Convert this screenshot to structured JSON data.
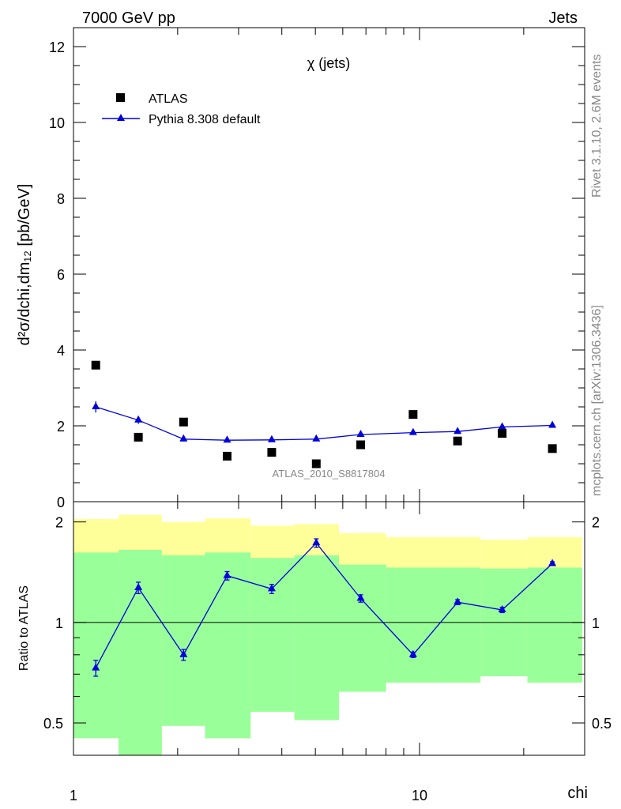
{
  "header": {
    "left": "7000 GeV pp",
    "right": "Jets"
  },
  "side_labels": {
    "rivet": "Rivet 3.1.10,  2.6M events",
    "site": "mcplots.cern.ch [arXiv:1306.3436]"
  },
  "chart_data": [
    {
      "type": "scatter",
      "title": "χ (jets)",
      "ylabel": "d²σ/dchi,dm₁₂ [pb/GeV]",
      "watermark": "ATLAS_2010_S8817804",
      "x_scale": "log",
      "xlim": [
        1,
        30
      ],
      "ylim": [
        0,
        12.5
      ],
      "y_ticks": [
        "0",
        "2",
        "4",
        "6",
        "8",
        "10",
        "12"
      ],
      "legend_position": "top-left",
      "series": [
        {
          "name": "ATLAS",
          "style": "square-markers",
          "color": "#000000",
          "x": [
            1.16,
            1.54,
            2.08,
            2.78,
            3.74,
            5.03,
            6.76,
            9.58,
            12.88,
            17.33,
            24.2
          ],
          "y": [
            3.6,
            1.7,
            2.1,
            1.2,
            1.3,
            1.0,
            1.5,
            2.3,
            1.6,
            1.8,
            1.4
          ]
        },
        {
          "name": "Pythia 8.308 default",
          "style": "line-triangle",
          "color": "#0000dd",
          "x": [
            1.16,
            1.54,
            2.08,
            2.78,
            3.74,
            5.03,
            6.76,
            9.58,
            12.88,
            17.33,
            24.2
          ],
          "y": [
            2.5,
            2.15,
            1.65,
            1.62,
            1.63,
            1.65,
            1.77,
            1.82,
            1.85,
            1.97,
            2.01
          ],
          "yerr": [
            0.15,
            0.1,
            0.06,
            0.04,
            0.04,
            0.04,
            0.04,
            0.04,
            0.04,
            0.04,
            0.04
          ]
        }
      ]
    },
    {
      "type": "line",
      "ylabel": "Ratio to ATLAS",
      "xlabel": "chi",
      "x_scale": "log",
      "y_scale": "log",
      "xlim": [
        1,
        30
      ],
      "ylim": [
        0.4,
        2.3
      ],
      "x_ticks": [
        "1",
        "10"
      ],
      "y_ticks": [
        "0.5",
        "1",
        "2"
      ],
      "reference_line": 1,
      "bins": [
        1.0,
        1.35,
        1.8,
        2.4,
        3.25,
        4.35,
        5.85,
        8.0,
        11.2,
        15.0,
        20.5,
        29.5
      ],
      "bands": [
        {
          "name": "total uncertainty",
          "color": "#ffff99",
          "lower": [
            0.45,
            0.37,
            0.49,
            0.45,
            0.54,
            0.51,
            0.62,
            0.66,
            0.66,
            0.69,
            0.66
          ],
          "upper": [
            2.04,
            2.1,
            2.0,
            2.05,
            1.95,
            1.97,
            1.85,
            1.8,
            1.8,
            1.77,
            1.8
          ]
        },
        {
          "name": "statistical uncertainty",
          "color": "#99ff99",
          "lower": [
            0.45,
            0.37,
            0.49,
            0.45,
            0.54,
            0.51,
            0.62,
            0.66,
            0.66,
            0.69,
            0.66
          ],
          "upper": [
            1.62,
            1.65,
            1.59,
            1.62,
            1.56,
            1.59,
            1.49,
            1.46,
            1.46,
            1.45,
            1.46
          ]
        }
      ],
      "series": [
        {
          "name": "Pythia 8.308 default",
          "color": "#0000dd",
          "x": [
            1.16,
            1.54,
            2.08,
            2.78,
            3.74,
            5.03,
            6.76,
            9.58,
            12.88,
            17.33,
            24.2
          ],
          "y": [
            0.73,
            1.27,
            0.8,
            1.38,
            1.26,
            1.73,
            1.18,
            0.8,
            1.15,
            1.09,
            1.5
          ],
          "yerr": [
            0.04,
            0.05,
            0.03,
            0.04,
            0.04,
            0.05,
            0.03,
            0.015,
            0.02,
            0.02,
            0.02
          ]
        }
      ]
    }
  ]
}
